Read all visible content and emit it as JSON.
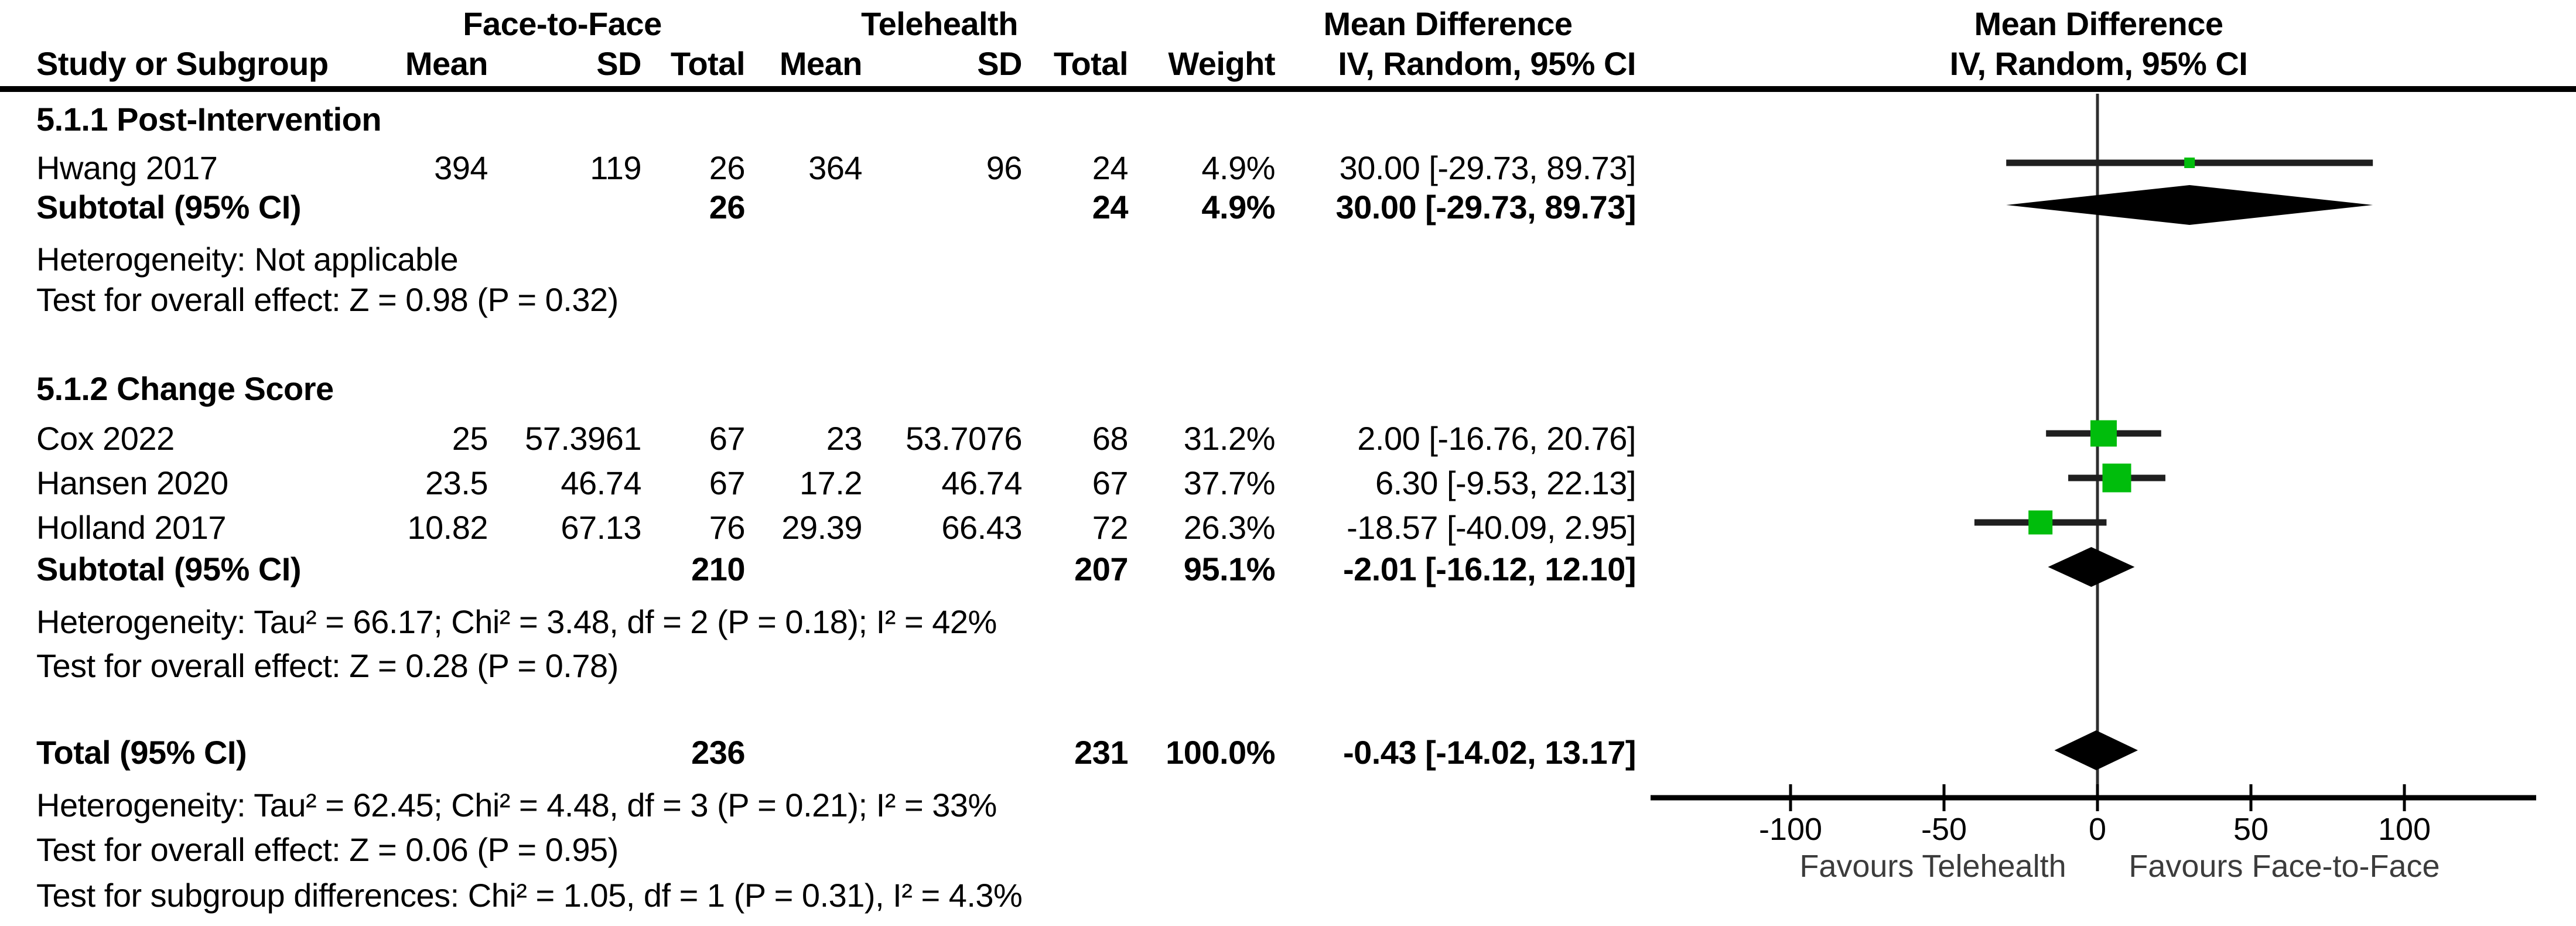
{
  "header": {
    "group1": "Face-to-Face",
    "group2": "Telehealth",
    "md_col": "Mean Difference",
    "md_plot": "Mean Difference",
    "sub": {
      "study": "Study or Subgroup",
      "mean1": "Mean",
      "sd1": "SD",
      "total1": "Total",
      "mean2": "Mean",
      "sd2": "SD",
      "total2": "Total",
      "weight": "Weight",
      "ci": "IV, Random, 95% CI",
      "ci_plot": "IV, Random, 95% CI"
    }
  },
  "colors": {
    "marker_green": "#00bd0c",
    "ci_line": "#1f1f1f",
    "diamond": "#000000",
    "axis": "#000000",
    "zero_line": "#2e2e2e",
    "favours_text": "#3c3c3c"
  },
  "rows": [
    {
      "type": "group",
      "label": "5.1.1 Post-Intervention"
    },
    {
      "type": "study",
      "label": "Hwang 2017",
      "mean1": "394",
      "sd1": "119",
      "total1": "26",
      "mean2": "364",
      "sd2": "96",
      "total2": "24",
      "weight": "4.9%",
      "ci": "30.00 [-29.73, 89.73]"
    },
    {
      "type": "subtotal",
      "label": "Subtotal (95% CI)",
      "total1": "26",
      "total2": "24",
      "weight": "4.9%",
      "ci": "30.00 [-29.73, 89.73]"
    },
    {
      "type": "stat",
      "label": "Heterogeneity: Not applicable"
    },
    {
      "type": "stat",
      "label": "Test for overall effect: Z = 0.98 (P = 0.32)"
    },
    {
      "type": "group",
      "label": "5.1.2 Change Score"
    },
    {
      "type": "study",
      "label": "Cox 2022",
      "mean1": "25",
      "sd1": "57.3961",
      "total1": "67",
      "mean2": "23",
      "sd2": "53.7076",
      "total2": "68",
      "weight": "31.2%",
      "ci": "2.00 [-16.76, 20.76]"
    },
    {
      "type": "study",
      "label": "Hansen 2020",
      "mean1": "23.5",
      "sd1": "46.74",
      "total1": "67",
      "mean2": "17.2",
      "sd2": "46.74",
      "total2": "67",
      "weight": "37.7%",
      "ci": "6.30 [-9.53, 22.13]"
    },
    {
      "type": "study",
      "label": "Holland 2017",
      "mean1": "10.82",
      "sd1": "67.13",
      "total1": "76",
      "mean2": "29.39",
      "sd2": "66.43",
      "total2": "72",
      "weight": "26.3%",
      "ci": "-18.57 [-40.09, 2.95]"
    },
    {
      "type": "subtotal",
      "label": "Subtotal (95% CI)",
      "total1": "210",
      "total2": "207",
      "weight": "95.1%",
      "ci": "-2.01 [-16.12, 12.10]"
    },
    {
      "type": "stat",
      "label": "Heterogeneity: Tau² = 66.17; Chi² = 3.48, df = 2 (P = 0.18); I² = 42%"
    },
    {
      "type": "stat",
      "label": "Test for overall effect: Z = 0.28 (P = 0.78)"
    },
    {
      "type": "total",
      "label": "Total (95% CI)",
      "total1": "236",
      "total2": "231",
      "weight": "100.0%",
      "ci": "-0.43 [-14.02, 13.17]"
    },
    {
      "type": "stat",
      "label": "Heterogeneity: Tau² = 62.45; Chi² = 4.48, df = 3 (P = 0.21); I² = 33%"
    },
    {
      "type": "stat",
      "label": "Test for overall effect: Z = 0.06 (P = 0.95)"
    },
    {
      "type": "stat",
      "label": "Test for subgroup differences: Chi² = 1.05, df = 1 (P = 0.31), I² = 4.3%"
    }
  ],
  "chart_data": {
    "type": "forest",
    "effect_measure": "Mean Difference",
    "model": "IV, Random, 95% CI",
    "x_ticks": [
      -100,
      -50,
      0,
      50,
      100
    ],
    "x_range": [
      -145,
      143
    ],
    "zero_line": 0,
    "favours_left": "Favours Telehealth",
    "favours_right": "Favours Face-to-Face",
    "studies": [
      {
        "label": "Hwang 2017",
        "md": 30.0,
        "ci_low": -29.73,
        "ci_high": 89.73,
        "weight_pct": 4.9
      },
      {
        "label": "Cox 2022",
        "md": 2.0,
        "ci_low": -16.76,
        "ci_high": 20.76,
        "weight_pct": 31.2
      },
      {
        "label": "Hansen 2020",
        "md": 6.3,
        "ci_low": -9.53,
        "ci_high": 22.13,
        "weight_pct": 37.7
      },
      {
        "label": "Holland 2017",
        "md": -18.57,
        "ci_low": -40.09,
        "ci_high": 2.95,
        "weight_pct": 26.3
      }
    ],
    "diamonds": [
      {
        "label": "Subtotal (95% CI) Post-Intervention",
        "center": 30.0,
        "ci_low": -29.73,
        "ci_high": 89.73
      },
      {
        "label": "Subtotal (95% CI) Change Score",
        "center": -2.01,
        "ci_low": -16.12,
        "ci_high": 12.1
      },
      {
        "label": "Total (95% CI)",
        "center": -0.43,
        "ci_low": -14.02,
        "ci_high": 13.17
      }
    ]
  }
}
